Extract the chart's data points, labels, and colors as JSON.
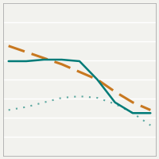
{
  "x": [
    0,
    1,
    2,
    3,
    4,
    5,
    6,
    7,
    8
  ],
  "line_solid": [
    6.2,
    6.2,
    6.3,
    6.3,
    6.2,
    5.0,
    3.5,
    2.8,
    2.8
  ],
  "line_dashed": [
    7.2,
    6.8,
    6.4,
    6.0,
    5.5,
    5.0,
    4.2,
    3.5,
    3.0
  ],
  "line_dotted": [
    3.0,
    3.2,
    3.5,
    3.8,
    3.9,
    3.8,
    3.4,
    2.8,
    2.0
  ],
  "solid_color": "#007b78",
  "dashed_color": "#c87820",
  "dotted_color": "#5ba8a0",
  "background_color": "#f2f2ee",
  "grid_color": "#ffffff",
  "ylim": [
    0,
    10
  ],
  "xlim": [
    -0.3,
    8.3
  ],
  "n_hlines": 8,
  "border_color": "#aaaaaa",
  "border_lw": 0.6
}
